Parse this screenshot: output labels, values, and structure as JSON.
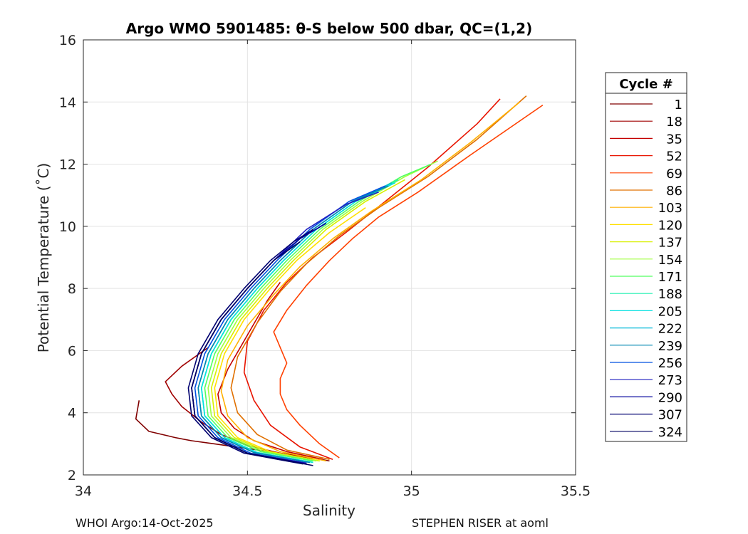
{
  "chart_data": {
    "type": "line",
    "title": "Argo WMO 5901485: θ-S below 500 dbar,  QC=(1,2)",
    "xlabel": "Salinity",
    "ylabel": "Potential Temperature (˚C)",
    "xlim": [
      34,
      35.5
    ],
    "ylim": [
      2,
      16
    ],
    "xticks": [
      34,
      34.5,
      35,
      35.5
    ],
    "xtick_labels": [
      "34",
      "34.5",
      "35",
      "35.5"
    ],
    "yticks": [
      2,
      4,
      6,
      8,
      10,
      12,
      14,
      16
    ],
    "ytick_labels": [
      "2",
      "4",
      "6",
      "8",
      "10",
      "12",
      "14",
      "16"
    ],
    "grid": true,
    "legend": {
      "title": "Cycle #",
      "placement": "outside-right",
      "entries": [
        {
          "label": "1",
          "color": "#800000"
        },
        {
          "label": "18",
          "color": "#a00000"
        },
        {
          "label": "35",
          "color": "#c40000"
        },
        {
          "label": "52",
          "color": "#e81400"
        },
        {
          "label": "69",
          "color": "#ff4000"
        },
        {
          "label": "86",
          "color": "#e07000"
        },
        {
          "label": "103",
          "color": "#ffb000"
        },
        {
          "label": "120",
          "color": "#ffe000"
        },
        {
          "label": "137",
          "color": "#d8f000"
        },
        {
          "label": "154",
          "color": "#a0ff40"
        },
        {
          "label": "171",
          "color": "#50ff60"
        },
        {
          "label": "188",
          "color": "#20f0b0"
        },
        {
          "label": "205",
          "color": "#00e0e0"
        },
        {
          "label": "222",
          "color": "#00b8d8"
        },
        {
          "label": "239",
          "color": "#0088b0"
        },
        {
          "label": "256",
          "color": "#0050e0"
        },
        {
          "label": "273",
          "color": "#2020c0"
        },
        {
          "label": "290",
          "color": "#00009a"
        },
        {
          "label": "307",
          "color": "#000070"
        },
        {
          "label": "324",
          "color": "#000060"
        }
      ]
    },
    "series": [
      {
        "name": "1",
        "color": "#800000",
        "s": [
          34.17,
          34.16,
          34.2,
          34.26,
          34.28,
          34.33,
          34.4,
          34.5,
          34.6,
          34.7,
          34.75
        ],
        "t": [
          4.4,
          3.8,
          3.4,
          3.25,
          3.2,
          3.1,
          3.0,
          2.85,
          2.7,
          2.55,
          2.45
        ]
      },
      {
        "name": "18",
        "color": "#a00000",
        "s": [
          34.7,
          34.6,
          34.5,
          34.42,
          34.36,
          34.3,
          34.27,
          34.25,
          34.3,
          34.38
        ],
        "t": [
          2.5,
          2.7,
          2.95,
          3.3,
          3.7,
          4.2,
          4.6,
          5.0,
          5.5,
          6.1
        ]
      },
      {
        "name": "35",
        "color": "#c40000",
        "s": [
          34.73,
          34.62,
          34.52,
          34.46,
          34.42,
          34.41,
          34.44,
          34.5,
          34.56,
          34.6
        ],
        "t": [
          2.5,
          2.75,
          3.1,
          3.5,
          4.0,
          4.6,
          5.4,
          6.5,
          7.6,
          8.2
        ]
      },
      {
        "name": "52",
        "color": "#e81400",
        "s": [
          34.76,
          34.66,
          34.57,
          34.52,
          34.49,
          34.5,
          34.55,
          34.62,
          34.7,
          34.8,
          34.92,
          35.05,
          35.2,
          35.27
        ],
        "t": [
          2.5,
          2.9,
          3.6,
          4.4,
          5.3,
          6.3,
          7.3,
          8.2,
          9.0,
          9.8,
          10.8,
          11.9,
          13.3,
          14.1
        ]
      },
      {
        "name": "69",
        "color": "#ff4000",
        "s": [
          34.78,
          34.72,
          34.66,
          34.62,
          34.6,
          34.6,
          34.62,
          34.6,
          34.58,
          34.62,
          34.68,
          34.75,
          34.82,
          34.9,
          35.02,
          35.18,
          35.4
        ],
        "t": [
          2.55,
          3.0,
          3.6,
          4.1,
          4.6,
          5.1,
          5.6,
          6.1,
          6.6,
          7.3,
          8.1,
          8.9,
          9.6,
          10.3,
          11.1,
          12.3,
          13.9
        ]
      },
      {
        "name": "86",
        "color": "#e07000",
        "s": [
          34.75,
          34.62,
          34.53,
          34.47,
          34.45,
          34.47,
          34.53,
          34.6,
          34.68,
          34.78,
          34.9,
          35.05,
          35.2,
          35.35
        ],
        "t": [
          2.5,
          2.8,
          3.3,
          4.0,
          4.8,
          5.8,
          6.9,
          7.9,
          8.8,
          9.7,
          10.6,
          11.6,
          12.8,
          14.2
        ]
      },
      {
        "name": "103",
        "color": "#ffb000",
        "s": [
          34.74,
          34.6,
          34.5,
          34.44,
          34.42,
          34.44,
          34.5,
          34.58,
          34.66,
          34.76,
          34.88,
          35.03,
          35.18,
          35.33
        ],
        "t": [
          2.45,
          2.75,
          3.2,
          3.9,
          4.7,
          5.7,
          6.8,
          7.8,
          8.7,
          9.6,
          10.5,
          11.5,
          12.7,
          14.0
        ]
      },
      {
        "name": "120",
        "color": "#ffe000",
        "s": [
          34.72,
          34.57,
          34.47,
          34.41,
          34.4,
          34.43,
          34.49,
          34.57,
          34.65,
          34.75,
          34.86
        ],
        "t": [
          2.45,
          2.75,
          3.2,
          3.9,
          4.8,
          5.9,
          7.0,
          8.0,
          8.9,
          9.8,
          10.6
        ]
      },
      {
        "name": "137",
        "color": "#d8f000",
        "s": [
          34.72,
          34.56,
          34.46,
          34.4,
          34.39,
          34.42,
          34.48,
          34.56,
          34.64,
          34.74,
          34.86,
          34.98
        ],
        "t": [
          2.45,
          2.75,
          3.2,
          3.9,
          4.8,
          5.9,
          7.0,
          8.0,
          8.9,
          9.9,
          10.8,
          11.5
        ]
      },
      {
        "name": "154",
        "color": "#a0ff40",
        "s": [
          34.71,
          34.55,
          34.45,
          34.39,
          34.38,
          34.41,
          34.47,
          34.55,
          34.63,
          34.73,
          34.85,
          34.98,
          35.08
        ],
        "t": [
          2.45,
          2.75,
          3.2,
          3.9,
          4.8,
          5.9,
          7.0,
          8.0,
          8.9,
          9.9,
          10.8,
          11.6,
          12.1
        ]
      },
      {
        "name": "171",
        "color": "#50ff60",
        "s": [
          34.7,
          34.54,
          34.44,
          34.38,
          34.37,
          34.4,
          34.46,
          34.54,
          34.62,
          34.72,
          34.84,
          34.97,
          35.06
        ],
        "t": [
          2.45,
          2.75,
          3.2,
          3.9,
          4.8,
          5.9,
          7.0,
          8.0,
          8.9,
          9.9,
          10.8,
          11.6,
          12.0
        ]
      },
      {
        "name": "188",
        "color": "#20f0b0",
        "s": [
          34.7,
          34.53,
          34.43,
          34.37,
          34.36,
          34.39,
          34.45,
          34.53,
          34.61,
          34.71,
          34.83,
          34.96
        ],
        "t": [
          2.4,
          2.72,
          3.2,
          3.9,
          4.8,
          5.9,
          7.0,
          8.0,
          8.9,
          9.9,
          10.8,
          11.5
        ]
      },
      {
        "name": "205",
        "color": "#00e0e0",
        "s": [
          34.7,
          34.53,
          34.43,
          34.37,
          34.36,
          34.39,
          34.45,
          34.53,
          34.61,
          34.71,
          34.83,
          34.95
        ],
        "t": [
          2.4,
          2.72,
          3.2,
          3.9,
          4.8,
          5.9,
          7.0,
          8.0,
          8.9,
          9.9,
          10.8,
          11.4
        ]
      },
      {
        "name": "222",
        "color": "#00b8d8",
        "s": [
          34.69,
          34.52,
          34.42,
          34.36,
          34.35,
          34.38,
          34.44,
          34.52,
          34.6,
          34.7,
          34.82,
          34.94
        ],
        "t": [
          2.4,
          2.72,
          3.2,
          3.9,
          4.8,
          5.9,
          7.0,
          8.0,
          8.9,
          9.9,
          10.8,
          11.4
        ]
      },
      {
        "name": "239",
        "color": "#0088b0",
        "s": [
          34.69,
          34.52,
          34.42,
          34.36,
          34.35,
          34.38,
          34.44,
          34.52,
          34.6,
          34.7,
          34.82,
          34.93
        ],
        "t": [
          2.4,
          2.72,
          3.2,
          3.9,
          4.8,
          5.9,
          7.0,
          8.0,
          8.9,
          9.9,
          10.8,
          11.3
        ]
      },
      {
        "name": "256",
        "color": "#0050e0",
        "s": [
          34.68,
          34.51,
          34.41,
          34.35,
          34.34,
          34.37,
          34.43,
          34.51,
          34.59,
          34.69,
          34.81,
          34.92
        ],
        "t": [
          2.38,
          2.7,
          3.2,
          3.9,
          4.8,
          5.9,
          7.0,
          8.0,
          8.9,
          9.9,
          10.8,
          11.3
        ]
      },
      {
        "name": "273",
        "color": "#2020c0",
        "s": [
          34.68,
          34.5,
          34.4,
          34.34,
          34.33,
          34.36,
          34.42,
          34.5,
          34.58,
          34.68,
          34.8,
          34.9
        ],
        "t": [
          2.38,
          2.7,
          3.2,
          3.9,
          4.8,
          5.9,
          7.0,
          8.0,
          8.9,
          9.9,
          10.7,
          11.1
        ]
      },
      {
        "name": "290",
        "color": "#00009a",
        "s": [
          34.68,
          34.5,
          34.4,
          34.34,
          34.33,
          34.36,
          34.42,
          34.5,
          34.58,
          34.66,
          34.74
        ],
        "t": [
          2.36,
          2.7,
          3.2,
          3.9,
          4.8,
          5.9,
          7.0,
          8.0,
          8.9,
          9.6,
          10.1
        ]
      },
      {
        "name": "307",
        "color": "#000070",
        "s": [
          34.67,
          34.49,
          34.39,
          34.33,
          34.32,
          34.35,
          34.41,
          34.49,
          34.57,
          34.64,
          34.7
        ],
        "t": [
          2.35,
          2.7,
          3.2,
          3.9,
          4.8,
          5.9,
          7.0,
          8.0,
          8.9,
          9.5,
          9.9
        ]
      },
      {
        "name": "324",
        "color": "#000060",
        "s": [
          34.7,
          34.5,
          34.4,
          34.34,
          34.33,
          34.36,
          34.42,
          34.5,
          34.58,
          34.66
        ],
        "t": [
          2.3,
          2.7,
          3.2,
          3.9,
          4.8,
          5.9,
          7.0,
          8.0,
          8.9,
          9.5
        ]
      }
    ]
  },
  "footer": {
    "left": "WHOI Argo:14-Oct-2025",
    "right": "STEPHEN RISER at aoml"
  }
}
